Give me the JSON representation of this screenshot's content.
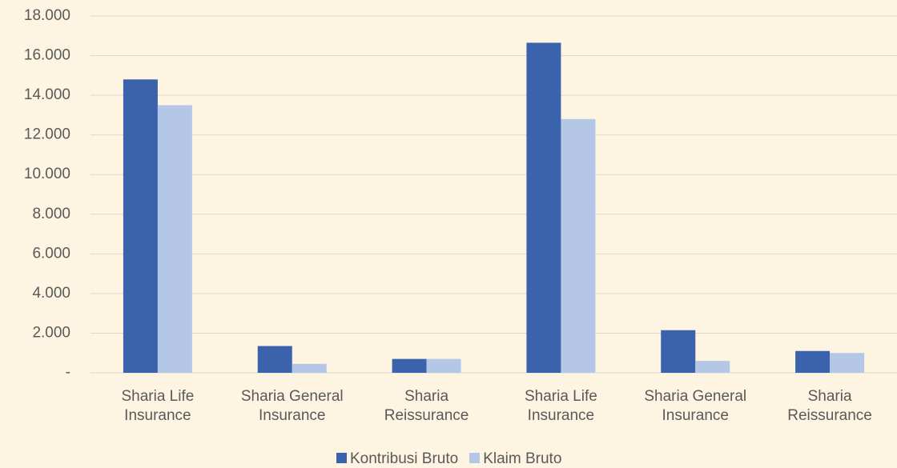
{
  "chart_data": {
    "type": "bar",
    "categories": [
      "Sharia Life Insurance",
      "Sharia General Insurance",
      "Sharia Reissurance",
      "Sharia Life Insurance",
      "Sharia General Insurance",
      "Sharia Reissurance"
    ],
    "series": [
      {
        "name": "Kontribusi Bruto",
        "color": "#3b62ad",
        "values": [
          14800,
          1350,
          700,
          16650,
          2150,
          1100
        ]
      },
      {
        "name": "Klaim Bruto",
        "color": "#b4c7e7",
        "values": [
          13500,
          450,
          700,
          12800,
          600,
          1000
        ]
      }
    ],
    "ylim": [
      0,
      18000
    ],
    "yticks": [
      {
        "value": 0,
        "label": "-"
      },
      {
        "value": 2000,
        "label": "2.000"
      },
      {
        "value": 4000,
        "label": "4.000"
      },
      {
        "value": 6000,
        "label": "6.000"
      },
      {
        "value": 8000,
        "label": "8.000"
      },
      {
        "value": 10000,
        "label": "10.000"
      },
      {
        "value": 12000,
        "label": "12.000"
      },
      {
        "value": 14000,
        "label": "14.000"
      },
      {
        "value": 16000,
        "label": "16.000"
      },
      {
        "value": 18000,
        "label": "18.000"
      }
    ],
    "grid": true,
    "legend": "bottom"
  }
}
